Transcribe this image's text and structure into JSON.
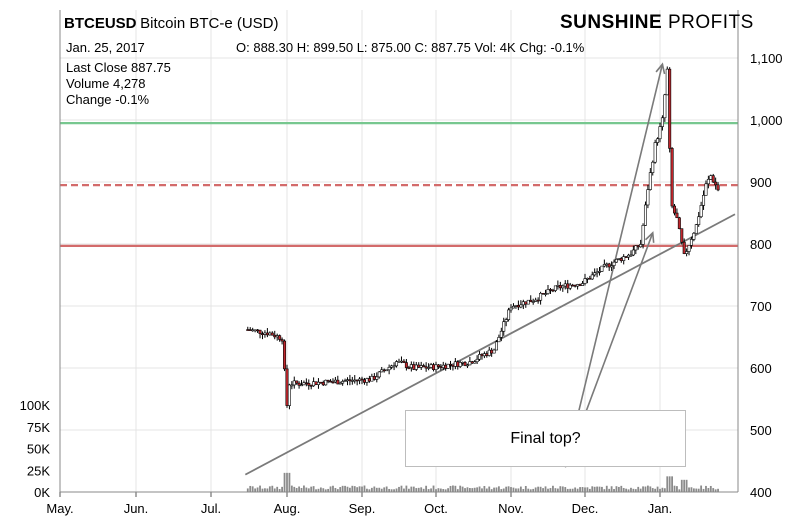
{
  "header": {
    "symbol": "BTCEUSD",
    "name": "Bitcoin BTC-e (USD)",
    "date": "Jan. 25, 2017",
    "ohlc": "O: 888.30 H: 899.50 L: 875.00 C: 887.75 Vol: 4K Chg: -0.1%",
    "brand_bold": "SUNSHINE",
    "brand_light": "PROFITS"
  },
  "stats": {
    "last_close": "Last Close 887.75",
    "volume": "Volume 4,278",
    "change": "Change -0.1%"
  },
  "annotation": {
    "text": "Final top?"
  },
  "chart_data": {
    "type": "candlestick",
    "x_labels": [
      "May.",
      "Jun.",
      "Jul.",
      "Aug.",
      "Sep.",
      "Oct.",
      "Nov.",
      "Dec.",
      "Jan."
    ],
    "y_ticks": [
      "1,100",
      "1,000",
      "900",
      "800",
      "700",
      "600",
      "500",
      "400"
    ],
    "volume_ticks": [
      "100K",
      "75K",
      "50K",
      "25K",
      "0K"
    ],
    "ylim": [
      400,
      1100
    ],
    "volume_lim": [
      0,
      100000
    ],
    "horizontal_lines": [
      {
        "value": 995,
        "style": "solid",
        "color": "#77c78f"
      },
      {
        "value": 895,
        "style": "dashed",
        "color": "#d36b6b"
      },
      {
        "value": 797,
        "style": "solid",
        "color": "#d36b6b"
      }
    ],
    "trendline": [
      {
        "date": "2016-07-15",
        "value": 428
      },
      {
        "date": "2017-02-01",
        "value": 848
      }
    ],
    "arrows": [
      {
        "from": {
          "date": "2016-11-23",
          "value": 440
        },
        "to": {
          "date": "2017-01-02",
          "value": 1090
        }
      },
      {
        "from": {
          "date": "2016-11-23",
          "value": 440
        },
        "to": {
          "date": "2016-12-29",
          "value": 818
        }
      }
    ],
    "price_path": [
      {
        "date": "2016-07-16",
        "value": 662
      },
      {
        "date": "2016-07-25",
        "value": 656
      },
      {
        "date": "2016-07-30",
        "value": 648
      },
      {
        "date": "2016-08-01",
        "value": 540
      },
      {
        "date": "2016-08-02",
        "value": 575
      },
      {
        "date": "2016-08-06",
        "value": 575
      },
      {
        "date": "2016-08-20",
        "value": 578
      },
      {
        "date": "2016-09-05",
        "value": 582
      },
      {
        "date": "2016-09-15",
        "value": 610
      },
      {
        "date": "2016-09-22",
        "value": 600
      },
      {
        "date": "2016-10-01",
        "value": 602
      },
      {
        "date": "2016-10-15",
        "value": 610
      },
      {
        "date": "2016-10-25",
        "value": 630
      },
      {
        "date": "2016-11-01",
        "value": 700
      },
      {
        "date": "2016-11-10",
        "value": 710
      },
      {
        "date": "2016-11-20",
        "value": 730
      },
      {
        "date": "2016-11-30",
        "value": 738
      },
      {
        "date": "2016-12-10",
        "value": 765
      },
      {
        "date": "2016-12-20",
        "value": 785
      },
      {
        "date": "2016-12-24",
        "value": 800
      },
      {
        "date": "2016-12-27",
        "value": 890
      },
      {
        "date": "2016-12-30",
        "value": 960
      },
      {
        "date": "2017-01-02",
        "value": 1000
      },
      {
        "date": "2017-01-04",
        "value": 1080
      },
      {
        "date": "2017-01-05",
        "value": 950
      },
      {
        "date": "2017-01-06",
        "value": 860
      },
      {
        "date": "2017-01-08",
        "value": 840
      },
      {
        "date": "2017-01-11",
        "value": 780
      },
      {
        "date": "2017-01-13",
        "value": 800
      },
      {
        "date": "2017-01-16",
        "value": 830
      },
      {
        "date": "2017-01-20",
        "value": 895
      },
      {
        "date": "2017-01-22",
        "value": 910
      },
      {
        "date": "2017-01-25",
        "value": 888
      }
    ],
    "volume_level": 5000,
    "volume_spikes": [
      {
        "date": "2016-08-01",
        "value": 22000
      },
      {
        "date": "2017-01-05",
        "value": 18000
      },
      {
        "date": "2017-01-11",
        "value": 14000
      }
    ]
  }
}
